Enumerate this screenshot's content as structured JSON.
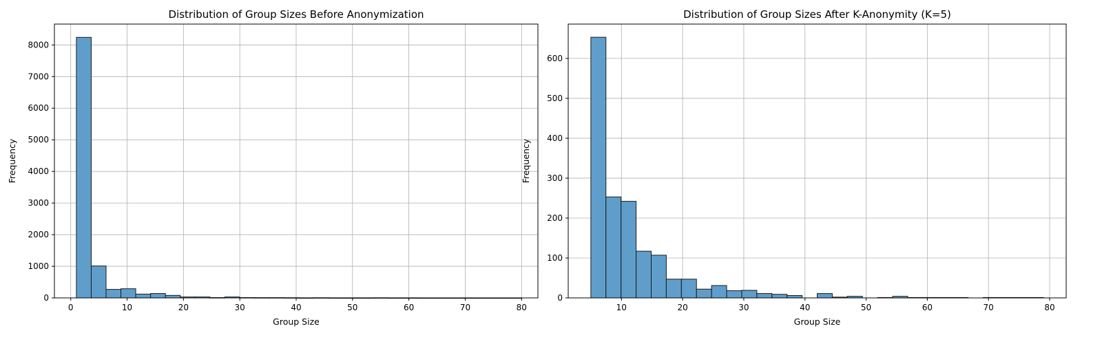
{
  "chart_data": [
    {
      "type": "histogram",
      "title": "Distribution of Group Sizes Before Anonymization",
      "xlabel": "Group Size",
      "ylabel": "Frequency",
      "xlim": [
        -2.9,
        82.9
      ],
      "ylim": [
        0,
        8660
      ],
      "xticks": [
        0,
        10,
        20,
        30,
        40,
        50,
        60,
        70,
        80
      ],
      "yticks": [
        0,
        1000,
        2000,
        3000,
        4000,
        5000,
        6000,
        7000,
        8000
      ],
      "grid": true,
      "bar_color": "#5f9ecb",
      "edge_color": "#1a1a1a",
      "bin_edges": [
        1,
        3.633,
        6.267,
        8.9,
        11.533,
        14.167,
        16.8,
        19.433,
        22.067,
        24.7,
        27.333,
        29.967,
        32.6,
        35.233,
        37.867,
        40.5,
        43.133,
        45.767,
        48.4,
        51.033,
        53.667,
        56.3,
        58.933,
        61.567,
        64.2,
        66.833,
        69.467,
        72.1,
        74.733,
        77.367,
        80
      ],
      "values": [
        8240,
        1010,
        270,
        290,
        120,
        140,
        80,
        30,
        30,
        10,
        30,
        10,
        8,
        8,
        6,
        2,
        5,
        2,
        2,
        2,
        4,
        2,
        2,
        1,
        1,
        1,
        1,
        1,
        1,
        1
      ]
    },
    {
      "type": "histogram",
      "title": "Distribution of Group Sizes After K-Anonymity (K=5)",
      "xlabel": "Group Size",
      "ylabel": "Frequency",
      "xlim": [
        1.3,
        82.7
      ],
      "ylim": [
        0,
        686
      ],
      "xticks": [
        10,
        20,
        30,
        40,
        50,
        60,
        70,
        80
      ],
      "yticks": [
        0,
        100,
        200,
        300,
        400,
        500,
        600
      ],
      "grid": true,
      "bar_color": "#5f9ecb",
      "edge_color": "#1a1a1a",
      "bin_edges": [
        5,
        7.467,
        9.933,
        12.4,
        14.867,
        17.333,
        19.8,
        22.267,
        24.733,
        27.2,
        29.667,
        32.133,
        34.6,
        37.067,
        39.533,
        42,
        44.467,
        46.933,
        49.4,
        51.867,
        54.333,
        56.8,
        59.267,
        61.733,
        64.2,
        66.667,
        69.133,
        71.6,
        74.067,
        76.533,
        79
      ],
      "values": [
        653,
        253,
        242,
        117,
        107,
        47,
        47,
        22,
        31,
        18,
        19,
        11,
        9,
        6,
        0,
        11,
        2,
        4,
        0,
        1,
        4,
        1,
        1,
        1,
        1,
        0,
        1,
        1,
        1,
        1
      ]
    }
  ]
}
